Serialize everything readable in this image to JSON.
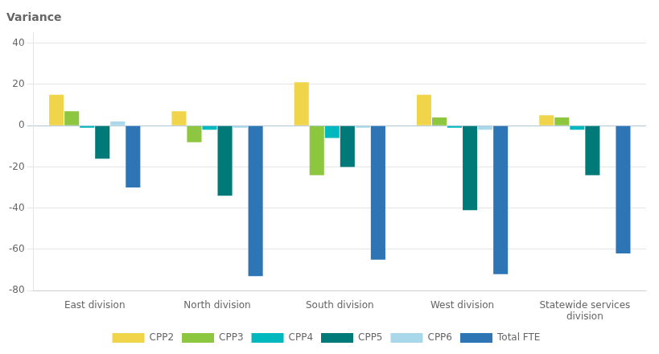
{
  "chart_data": {
    "type": "bar",
    "title": "Variance",
    "categories": [
      "East division",
      "North division",
      "South division",
      "West division",
      "Statewide services\ndivision"
    ],
    "series": [
      {
        "name": "CPP2",
        "color": "#f0d44a",
        "values": [
          15,
          7,
          21,
          15,
          5
        ]
      },
      {
        "name": "CPP3",
        "color": "#8dc63f",
        "values": [
          7,
          -8,
          -24,
          4,
          4
        ]
      },
      {
        "name": "CPP4",
        "color": "#00b8be",
        "values": [
          -1,
          -2,
          -6,
          -1,
          -2
        ]
      },
      {
        "name": "CPP5",
        "color": "#007a78",
        "values": [
          -16,
          -34,
          -20,
          -41,
          -24
        ]
      },
      {
        "name": "CPP6",
        "color": "#a8d8ea",
        "values": [
          2,
          -1,
          -1,
          -2,
          0
        ]
      },
      {
        "name": "Total FTE",
        "color": "#2e75b6",
        "values": [
          -30,
          -73,
          -65,
          -72,
          -62
        ]
      }
    ],
    "ylim": [
      -80,
      45
    ],
    "yticks": [
      -80,
      -60,
      -40,
      -20,
      0,
      20,
      40
    ],
    "grid": true,
    "legend": "bottom"
  }
}
